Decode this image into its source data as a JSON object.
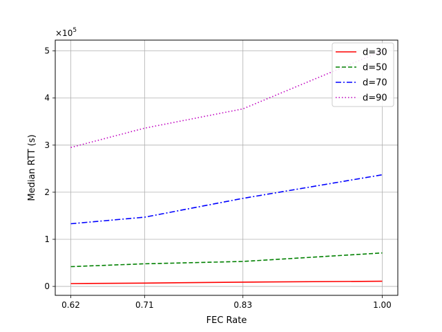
{
  "chart_data": {
    "type": "line",
    "title": "",
    "xlabel": "FEC Rate",
    "ylabel": "Median RTT (s)",
    "y_multiplier_label": "×10",
    "y_multiplier_exponent": "5",
    "x": [
      0.62,
      0.71,
      0.83,
      1.0
    ],
    "x_tick_labels": [
      "0.62",
      "0.71",
      "0.83",
      "1.00"
    ],
    "xlim": [
      0.601,
      1.019
    ],
    "y_ticks": [
      0,
      1,
      2,
      3,
      4,
      5
    ],
    "y_tick_labels": [
      "0",
      "1",
      "2",
      "3",
      "4",
      "5"
    ],
    "ylim": [
      -0.19,
      5.23
    ],
    "y_unit_scale": 100000,
    "grid": true,
    "legend_position": "top-right",
    "series": [
      {
        "name": "d=30",
        "color": "#ff0000",
        "dash": "solid",
        "values": [
          0.06,
          0.07,
          0.09,
          0.11
        ]
      },
      {
        "name": "d=50",
        "color": "#008000",
        "dash": "dashed",
        "values": [
          0.42,
          0.48,
          0.53,
          0.71
        ]
      },
      {
        "name": "d=70",
        "color": "#0000ff",
        "dash": "dashdot",
        "values": [
          1.33,
          1.47,
          1.87,
          2.37
        ]
      },
      {
        "name": "d=90",
        "color": "#bf00bf",
        "dash": "dotted",
        "values": [
          2.95,
          3.36,
          3.77,
          5.0
        ]
      }
    ]
  }
}
